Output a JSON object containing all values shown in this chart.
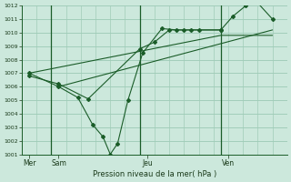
{
  "xlabel": "Pression niveau de la mer( hPa )",
  "ylim": [
    1001,
    1012
  ],
  "yticks": [
    1001,
    1002,
    1003,
    1004,
    1005,
    1006,
    1007,
    1008,
    1009,
    1010,
    1011,
    1012
  ],
  "xlim": [
    0,
    18
  ],
  "day_labels": [
    "Mer",
    "Sam",
    "Jeu",
    "Ven"
  ],
  "day_positions": [
    0.5,
    2.5,
    8.5,
    14.0
  ],
  "vline_positions": [
    2.0,
    8.0,
    13.5
  ],
  "background_color": "#cce8dc",
  "grid_color": "#a0ccb8",
  "line_color": "#1a5c28",
  "line1_x": [
    0.5,
    2.5,
    3.8,
    4.8,
    5.5,
    6.0,
    6.5,
    7.2,
    8.2,
    9.5,
    10.5,
    11.5,
    13.5,
    14.3,
    15.2,
    16.0,
    17.0
  ],
  "line1_y": [
    1007.0,
    1006.0,
    1005.2,
    1003.2,
    1002.3,
    1001.0,
    1001.8,
    1005.0,
    1008.5,
    1010.3,
    1010.2,
    1010.2,
    1010.2,
    1011.2,
    1012.0,
    1012.2,
    1011.0
  ],
  "line2_x": [
    0.5,
    2.5,
    4.5,
    8.0,
    9.0,
    10.0,
    11.0,
    12.0,
    13.5
  ],
  "line2_y": [
    1006.8,
    1006.2,
    1005.1,
    1008.8,
    1009.3,
    1010.2,
    1010.2,
    1010.2,
    1010.2
  ],
  "line3_x": [
    0.5,
    13.5,
    17.0
  ],
  "line3_y": [
    1007.0,
    1009.8,
    1009.8
  ],
  "line4_x": [
    2.5,
    17.0
  ],
  "line4_y": [
    1006.0,
    1010.2
  ],
  "marker": "D",
  "markersize": 2.0,
  "linewidth": 0.8,
  "figsize": [
    3.2,
    2.0
  ],
  "dpi": 100
}
